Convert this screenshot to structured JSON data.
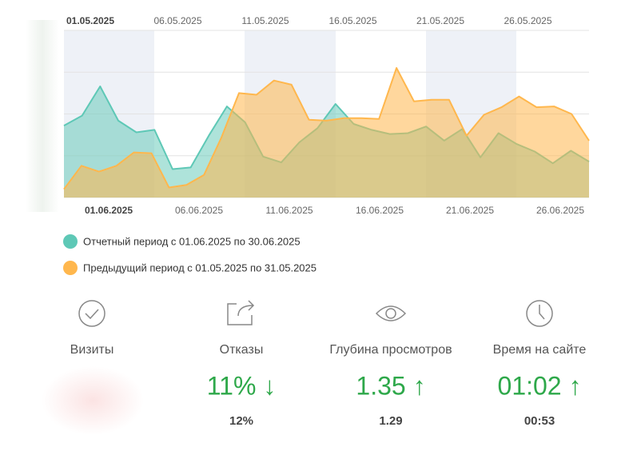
{
  "chart_data": {
    "type": "area",
    "ylim": [
      0,
      100
    ],
    "yticks": [
      0,
      25,
      50,
      75,
      100
    ],
    "grid": true,
    "x_labels_previous": [
      "01.05.2025",
      "06.05.2025",
      "11.05.2025",
      "16.05.2025",
      "21.05.2025",
      "26.05.2025"
    ],
    "x_labels_current": [
      "01.06.2025",
      "06.06.2025",
      "11.06.2025",
      "16.06.2025",
      "21.06.2025",
      "26.06.2025"
    ],
    "series": [
      {
        "name": "Отчетный период с 01.06.2025 по 30.06.2025",
        "color": "#5ec8b6",
        "values": [
          43,
          49,
          66.5,
          46,
          39,
          40.5,
          17,
          18,
          37,
          54.5,
          45,
          24.5,
          21,
          33,
          41.5,
          56,
          44,
          40.5,
          38,
          38.5,
          42.5,
          34,
          41,
          24,
          38.5,
          32,
          27.5,
          20.5,
          28,
          21.5
        ]
      },
      {
        "name": "Предыдущий период с 01.05.2025 по 31.05.2025",
        "color": "#ffb74d",
        "values": [
          5,
          19,
          15.5,
          19,
          27,
          26.5,
          6,
          7.5,
          13.5,
          36,
          62.5,
          61.5,
          70,
          67.5,
          46.5,
          46,
          47.5,
          47.5,
          47,
          77.5,
          57.5,
          58.5,
          58.5,
          37,
          49.5,
          54,
          60.5,
          54,
          54.5,
          50,
          34
        ]
      }
    ]
  },
  "metrics": [
    {
      "label": "Визиты"
    },
    {
      "label": "Отказы",
      "value": "11% ↓",
      "previous": "12%"
    },
    {
      "label": "Глубина просмотров",
      "value": "1.35 ↑",
      "previous": "1.29"
    },
    {
      "label": "Время на сайте",
      "value": "01:02 ↑",
      "previous": "00:53"
    }
  ]
}
